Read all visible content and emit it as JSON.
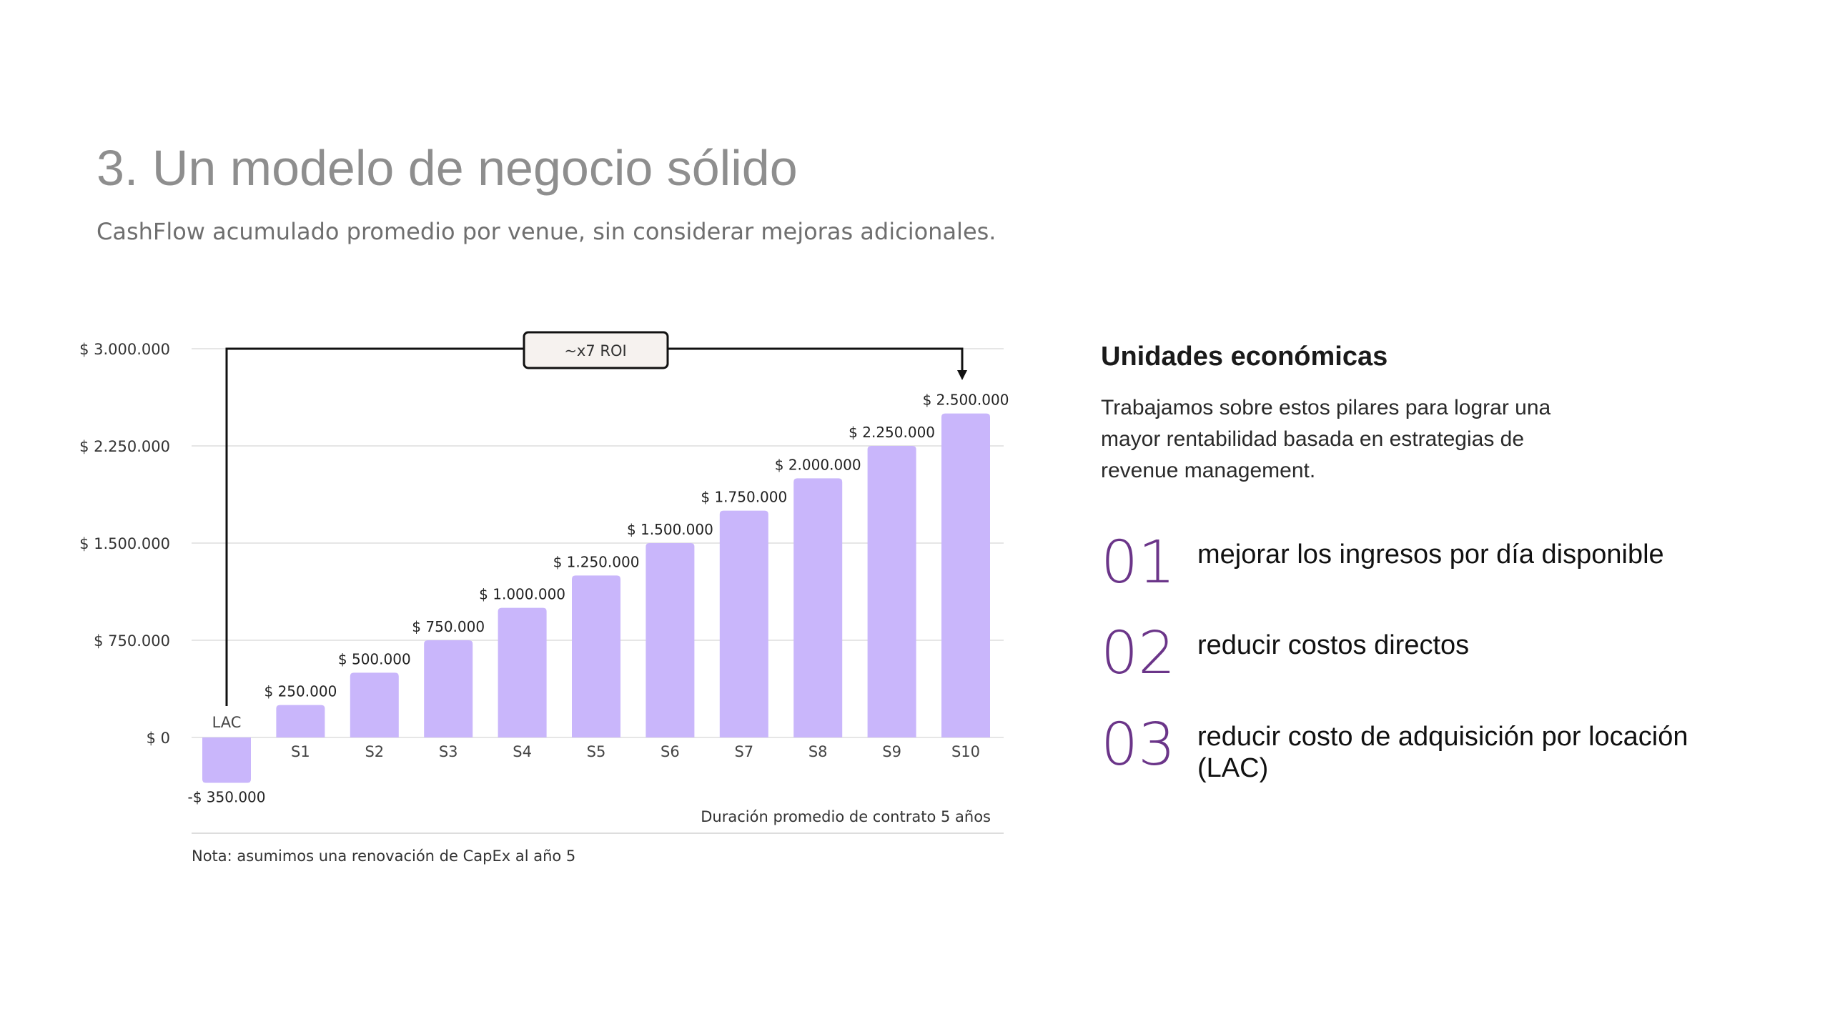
{
  "header": {
    "title": "3. Un modelo de negocio sólido",
    "subtitle": "CashFlow acumulado promedio por venue, sin considerar mejoras adicionales."
  },
  "chart_data": {
    "type": "bar",
    "categories": [
      "LAC",
      "S1",
      "S2",
      "S3",
      "S4",
      "S5",
      "S6",
      "S7",
      "S8",
      "S9",
      "S10"
    ],
    "values": [
      -350000,
      250000,
      500000,
      750000,
      1000000,
      1250000,
      1500000,
      1750000,
      2000000,
      2250000,
      2500000
    ],
    "value_labels": [
      "-$ 350.000",
      "$ 250.000",
      "$ 500.000",
      "$ 750.000",
      "$ 1.000.000",
      "$ 1.250.000",
      "$ 1.500.000",
      "$ 1.750.000",
      "$ 2.000.000",
      "$ 2.250.000",
      "$ 2.500.000"
    ],
    "yticks": [
      0,
      750000,
      1500000,
      2250000,
      3000000
    ],
    "ytick_labels": [
      "$ 0",
      "$ 750.000",
      "$ 1.500.000",
      "$ 2.250.000",
      "$ 3.000.000"
    ],
    "ylim": [
      -350000,
      3000000
    ],
    "grid": true,
    "bar_color": "#c9b6fb",
    "annotation": "~x7 ROI",
    "duration_note": "Duración promedio de contrato 5 años",
    "footnote": "Nota: asumimos una renovación de CapEx al año 5"
  },
  "unidades": {
    "title": "Unidades económicas",
    "description": "Trabajamos sobre estos pilares para lograr una mayor rentabilidad basada en estrategias de revenue management.",
    "accent_color": "#6b3589",
    "pillars": [
      {
        "number": "01",
        "text": "mejorar los ingresos por día disponible"
      },
      {
        "number": "02",
        "text": "reducir costos directos"
      },
      {
        "number": "03",
        "text": "reducir costo de adquisición por locación (LAC)"
      }
    ]
  }
}
